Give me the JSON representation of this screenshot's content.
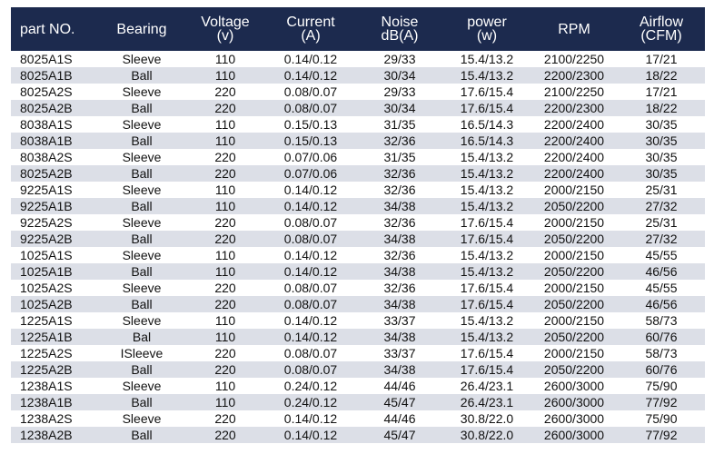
{
  "table": {
    "header": [
      [
        "part NO."
      ],
      [
        "Bearing"
      ],
      [
        "Voltage",
        "(v)"
      ],
      [
        "Current",
        "(A)"
      ],
      [
        "Noise",
        "dB(A)"
      ],
      [
        "power",
        "(w)"
      ],
      [
        "RPM"
      ],
      [
        "Airflow",
        "(CFM)"
      ]
    ],
    "rows": [
      [
        "8025A1S",
        "Sleeve",
        "110",
        "0.14/0.12",
        "29/33",
        "15.4/13.2",
        "2100/2250",
        "17/21"
      ],
      [
        "8025A1B",
        "Ball",
        "110",
        "0.14/0.12",
        "30/34",
        "15.4/13.2",
        "2200/2300",
        "18/22"
      ],
      [
        "8025A2S",
        "Sleeve",
        "220",
        "0.08/0.07",
        "29/33",
        "17.6/15.4",
        "2100/2250",
        "17/21"
      ],
      [
        "8025A2B",
        "Ball",
        "220",
        "0.08/0.07",
        "30/34",
        "17.6/15.4",
        "2200/2300",
        "18/22"
      ],
      [
        "8038A1S",
        "Sleeve",
        "110",
        "0.15/0.13",
        "31/35",
        "16.5/14.3",
        "2200/2400",
        "30/35"
      ],
      [
        "8038A1B",
        "Ball",
        "110",
        "0.15/0.13",
        "32/36",
        "16.5/14.3",
        "2200/2400",
        "30/35"
      ],
      [
        "8038A2S",
        "Sleeve",
        "220",
        "0.07/0.06",
        "31/35",
        "15.4/13.2",
        "2200/2400",
        "30/35"
      ],
      [
        "8025A2B",
        "Ball",
        "220",
        "0.07/0.06",
        "32/36",
        "15.4/13.2",
        "2200/2400",
        "30/35"
      ],
      [
        "9225A1S",
        "Sleeve",
        "110",
        "0.14/0.12",
        "32/36",
        "15.4/13.2",
        "2000/2150",
        "25/31"
      ],
      [
        "9225A1B",
        "Ball",
        "110",
        "0.14/0.12",
        "34/38",
        "15.4/13.2",
        "2050/2200",
        "27/32"
      ],
      [
        "9225A2S",
        "Sleeve",
        "220",
        "0.08/0.07",
        "32/36",
        "17.6/15.4",
        "2000/2150",
        "25/31"
      ],
      [
        "9225A2B",
        "Ball",
        "220",
        "0.08/0.07",
        "34/38",
        "17.6/15.4",
        "2050/2200",
        "27/32"
      ],
      [
        "1025A1S",
        "Sleeve",
        "110",
        "0.14/0.12",
        "32/36",
        "15.4/13.2",
        "2000/2150",
        "45/55"
      ],
      [
        "1025A1B",
        "Ball",
        "110",
        "0.14/0.12",
        "34/38",
        "15.4/13.2",
        "2050/2200",
        "46/56"
      ],
      [
        "1025A2S",
        "Sleeve",
        "220",
        "0.08/0.07",
        "32/36",
        "17.6/15.4",
        "2000/2150",
        "45/55"
      ],
      [
        "1025A2B",
        "Ball",
        "220",
        "0.08/0.07",
        "34/38",
        "17.6/15.4",
        "2050/2200",
        "46/56"
      ],
      [
        "1225A1S",
        "Sleeve",
        "110",
        "0.14/0.12",
        "33/37",
        "15.4/13.2",
        "2000/2150",
        "58/73"
      ],
      [
        "1225A1B",
        "Bal",
        "110",
        "0.14/0.12",
        "34/38",
        "15.4/13.2",
        "2050/2200",
        "60/76"
      ],
      [
        "1225A2S",
        "ISleeve",
        "220",
        "0.08/0.07",
        "33/37",
        "17.6/15.4",
        "2000/2150",
        "58/73"
      ],
      [
        "1225A2B",
        "Ball",
        "220",
        "0.08/0.07",
        "34/38",
        "17.6/15.4",
        "2050/2200",
        "60/76"
      ],
      [
        "1238A1S",
        "Sleeve",
        "110",
        "0.24/0.12",
        "44/46",
        "26.4/23.1",
        "2600/3000",
        "75/90"
      ],
      [
        "1238A1B",
        "Ball",
        "110",
        "0.24/0.12",
        "45/47",
        "26.4/23.1",
        "2600/3000",
        "77/92"
      ],
      [
        "1238A2S",
        "Sleeve",
        "220",
        "0.14/0.12",
        "44/46",
        "30.8/22.0",
        "2600/3000",
        "75/90"
      ],
      [
        "1238A2B",
        "Ball",
        "220",
        "0.14/0.12",
        "45/47",
        "30.8/22.0",
        "2600/3000",
        "77/92"
      ]
    ]
  }
}
